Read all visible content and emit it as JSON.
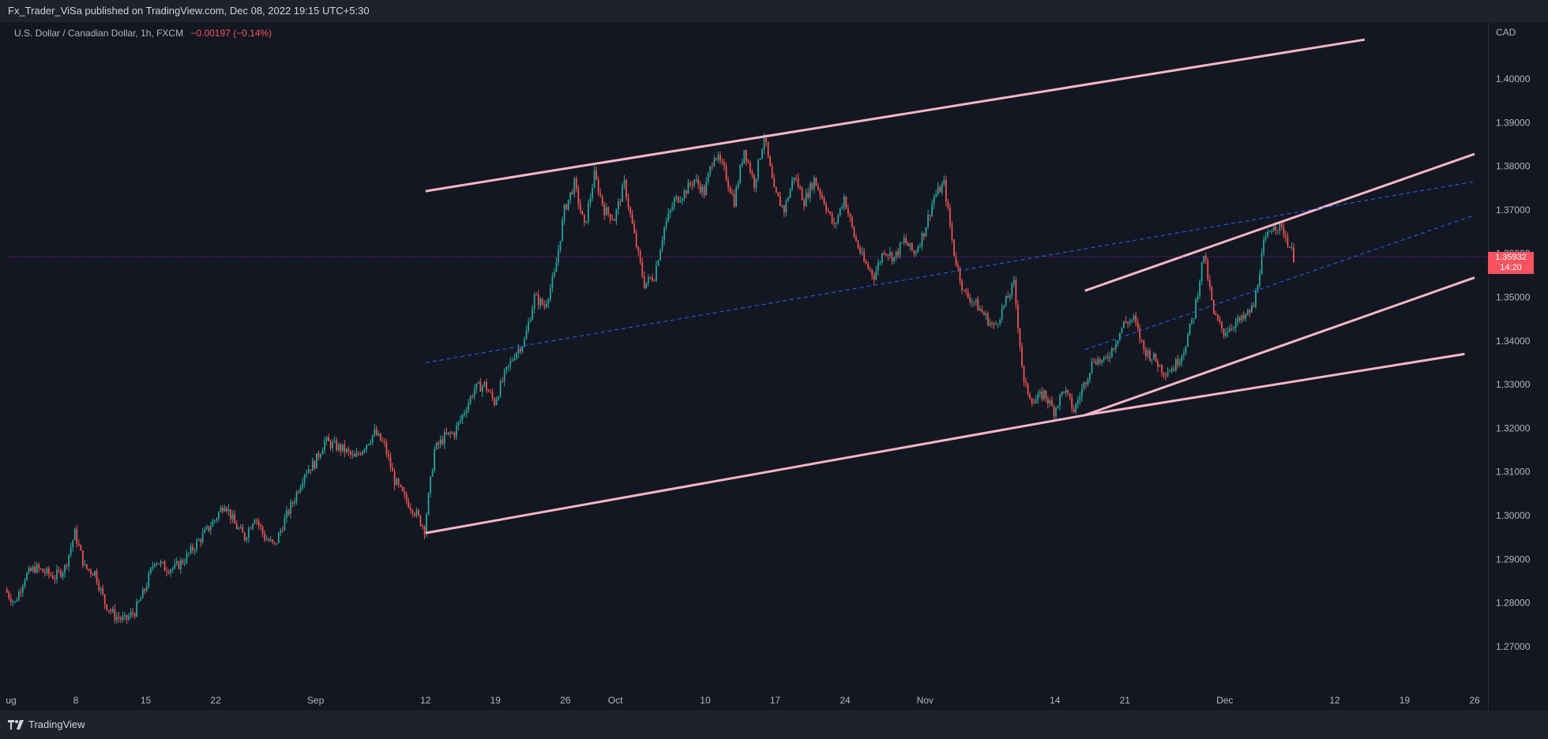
{
  "header": {
    "publisher_line": "Fx_Trader_ViSa published on TradingView.com, Dec 08, 2022 19:15 UTC+5:30"
  },
  "symbol": {
    "title": "U.S. Dollar / Canadian Dollar, 1h, FXCM",
    "change": "−0.00197 (−0.14%)"
  },
  "currency": "CAD",
  "last_price": {
    "value": "1.35932",
    "countdown": "14:20",
    "color": "#f7525f"
  },
  "footer": {
    "brand": "TradingView"
  },
  "colors": {
    "background": "#131722",
    "up": "#26a69a",
    "down": "#ef5350",
    "trendline": "#f4b6c8",
    "dashed": "#2962ff"
  },
  "chart_data": {
    "type": "candlestick",
    "y_ticks": [
      "1.40000",
      "1.39000",
      "1.38000",
      "1.37000",
      "1.36000",
      "1.35000",
      "1.34000",
      "1.33000",
      "1.32000",
      "1.31000",
      "1.30000",
      "1.29000",
      "1.28000",
      "1.27000"
    ],
    "ylim": [
      1.2655,
      1.4105
    ],
    "x_ticks": [
      "ug",
      "8",
      "15",
      "22",
      "Sep",
      "12",
      "19",
      "26",
      "Oct",
      "10",
      "17",
      "24",
      "Nov",
      "14",
      "21",
      "Dec",
      "12",
      "19",
      "26"
    ],
    "price_path": [
      [
        "2022-08-01",
        1.283
      ],
      [
        "2022-08-02",
        1.28
      ],
      [
        "2022-08-03",
        1.286
      ],
      [
        "2022-08-04",
        1.288
      ],
      [
        "2022-08-05",
        1.287
      ],
      [
        "2022-08-06",
        1.286
      ],
      [
        "2022-08-07",
        1.288
      ],
      [
        "2022-08-08",
        1.296
      ],
      [
        "2022-08-09",
        1.288
      ],
      [
        "2022-08-10",
        1.287
      ],
      [
        "2022-08-11",
        1.28
      ],
      [
        "2022-08-12",
        1.277
      ],
      [
        "2022-08-13",
        1.276
      ],
      [
        "2022-08-14",
        1.278
      ],
      [
        "2022-08-15",
        1.283
      ],
      [
        "2022-08-16",
        1.29
      ],
      [
        "2022-08-17",
        1.288
      ],
      [
        "2022-08-18",
        1.288
      ],
      [
        "2022-08-19",
        1.29
      ],
      [
        "2022-08-20",
        1.293
      ],
      [
        "2022-08-21",
        1.296
      ],
      [
        "2022-08-22",
        1.299
      ],
      [
        "2022-08-23",
        1.303
      ],
      [
        "2022-08-24",
        1.298
      ],
      [
        "2022-08-25",
        1.295
      ],
      [
        "2022-08-26",
        1.3
      ],
      [
        "2022-08-27",
        1.295
      ],
      [
        "2022-08-28",
        1.293
      ],
      [
        "2022-08-29",
        1.299
      ],
      [
        "2022-08-30",
        1.304
      ],
      [
        "2022-08-31",
        1.31
      ],
      [
        "2022-09-01",
        1.312
      ],
      [
        "2022-09-02",
        1.317
      ],
      [
        "2022-09-03",
        1.316
      ],
      [
        "2022-09-04",
        1.315
      ],
      [
        "2022-09-05",
        1.313
      ],
      [
        "2022-09-06",
        1.316
      ],
      [
        "2022-09-07",
        1.319
      ],
      [
        "2022-09-08",
        1.316
      ],
      [
        "2022-09-09",
        1.308
      ],
      [
        "2022-09-10",
        1.304
      ],
      [
        "2022-09-11",
        1.301
      ],
      [
        "2022-09-12",
        1.297
      ],
      [
        "2022-09-13",
        1.315
      ],
      [
        "2022-09-14",
        1.318
      ],
      [
        "2022-09-15",
        1.319
      ],
      [
        "2022-09-16",
        1.324
      ],
      [
        "2022-09-17",
        1.329
      ],
      [
        "2022-09-18",
        1.33
      ],
      [
        "2022-09-19",
        1.326
      ],
      [
        "2022-09-20",
        1.332
      ],
      [
        "2022-09-21",
        1.337
      ],
      [
        "2022-09-22",
        1.34
      ],
      [
        "2022-09-23",
        1.35
      ],
      [
        "2022-09-24",
        1.348
      ],
      [
        "2022-09-25",
        1.355
      ],
      [
        "2022-09-26",
        1.37
      ],
      [
        "2022-09-27",
        1.376
      ],
      [
        "2022-09-28",
        1.366
      ],
      [
        "2022-09-29",
        1.378
      ],
      [
        "2022-09-30",
        1.37
      ],
      [
        "2022-10-01",
        1.368
      ],
      [
        "2022-10-02",
        1.376
      ],
      [
        "2022-10-03",
        1.364
      ],
      [
        "2022-10-04",
        1.353
      ],
      [
        "2022-10-05",
        1.355
      ],
      [
        "2022-10-06",
        1.366
      ],
      [
        "2022-10-07",
        1.372
      ],
      [
        "2022-10-08",
        1.374
      ],
      [
        "2022-10-09",
        1.377
      ],
      [
        "2022-10-10",
        1.374
      ],
      [
        "2022-10-11",
        1.383
      ],
      [
        "2022-10-12",
        1.379
      ],
      [
        "2022-10-13",
        1.372
      ],
      [
        "2022-10-14",
        1.384
      ],
      [
        "2022-10-15",
        1.376
      ],
      [
        "2022-10-16",
        1.387
      ],
      [
        "2022-10-17",
        1.374
      ],
      [
        "2022-10-18",
        1.37
      ],
      [
        "2022-10-19",
        1.378
      ],
      [
        "2022-10-20",
        1.372
      ],
      [
        "2022-10-21",
        1.377
      ],
      [
        "2022-10-22",
        1.372
      ],
      [
        "2022-10-23",
        1.366
      ],
      [
        "2022-10-24",
        1.373
      ],
      [
        "2022-10-25",
        1.364
      ],
      [
        "2022-10-26",
        1.358
      ],
      [
        "2022-10-27",
        1.355
      ],
      [
        "2022-10-28",
        1.361
      ],
      [
        "2022-10-29",
        1.359
      ],
      [
        "2022-10-30",
        1.363
      ],
      [
        "2022-10-31",
        1.36
      ],
      [
        "2022-11-01",
        1.365
      ],
      [
        "2022-11-02",
        1.373
      ],
      [
        "2022-11-03",
        1.376
      ],
      [
        "2022-11-04",
        1.36
      ],
      [
        "2022-11-05",
        1.351
      ],
      [
        "2022-11-06",
        1.349
      ],
      [
        "2022-11-07",
        1.346
      ],
      [
        "2022-11-08",
        1.343
      ],
      [
        "2022-11-09",
        1.348
      ],
      [
        "2022-11-10",
        1.353
      ],
      [
        "2022-11-11",
        1.33
      ],
      [
        "2022-11-12",
        1.326
      ],
      [
        "2022-11-13",
        1.328
      ],
      [
        "2022-11-14",
        1.324
      ],
      [
        "2022-11-15",
        1.329
      ],
      [
        "2022-11-16",
        1.324
      ],
      [
        "2022-11-17",
        1.33
      ],
      [
        "2022-11-18",
        1.336
      ],
      [
        "2022-11-19",
        1.335
      ],
      [
        "2022-11-20",
        1.339
      ],
      [
        "2022-11-21",
        1.344
      ],
      [
        "2022-11-22",
        1.345
      ],
      [
        "2022-11-23",
        1.338
      ],
      [
        "2022-11-24",
        1.336
      ],
      [
        "2022-11-25",
        1.333
      ],
      [
        "2022-11-26",
        1.334
      ],
      [
        "2022-11-27",
        1.338
      ],
      [
        "2022-11-28",
        1.346
      ],
      [
        "2022-11-29",
        1.36
      ],
      [
        "2022-11-30",
        1.346
      ],
      [
        "2022-12-01",
        1.342
      ],
      [
        "2022-12-02",
        1.344
      ],
      [
        "2022-12-03",
        1.345
      ],
      [
        "2022-12-04",
        1.348
      ],
      [
        "2022-12-05",
        1.362
      ],
      [
        "2022-12-06",
        1.367
      ],
      [
        "2022-12-07",
        1.365
      ],
      [
        "2022-12-08",
        1.3593
      ]
    ],
    "annotations": {
      "solid_trendlines": [
        [
          [
            "2022-09-12",
            1.3743
          ],
          [
            "2022-12-15",
            1.409
          ]
        ],
        [
          [
            "2022-09-12",
            1.296
          ],
          [
            "2022-11-17",
            1.323
          ],
          [
            "2022-12-25",
            1.337
          ]
        ],
        [
          [
            "2022-11-17",
            1.323
          ],
          [
            "2022-12-26",
            1.3545
          ]
        ],
        [
          [
            "2022-11-17",
            1.3515
          ],
          [
            "2022-12-26",
            1.3828
          ]
        ]
      ],
      "dashed_trendlines": [
        [
          [
            "2022-09-12",
            1.335
          ],
          [
            "2022-12-26",
            1.3765
          ]
        ],
        [
          [
            "2022-11-17",
            1.338
          ],
          [
            "2022-12-26",
            1.3688
          ]
        ]
      ],
      "horizontal_line": 1.35932
    }
  }
}
